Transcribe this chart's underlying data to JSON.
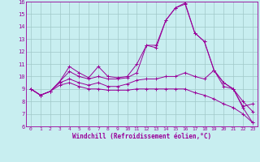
{
  "xlabel": "Windchill (Refroidissement éolien,°C)",
  "xlim": [
    -0.5,
    23.5
  ],
  "ylim": [
    6,
    16
  ],
  "xticks": [
    0,
    1,
    2,
    3,
    4,
    5,
    6,
    7,
    8,
    9,
    10,
    11,
    12,
    13,
    14,
    15,
    16,
    17,
    18,
    19,
    20,
    21,
    22,
    23
  ],
  "yticks": [
    6,
    7,
    8,
    9,
    10,
    11,
    12,
    13,
    14,
    15,
    16
  ],
  "background_color": "#c8eef0",
  "line_color": "#990099",
  "grid_color": "#a0c8c8",
  "series": [
    [
      9.0,
      8.5,
      8.8,
      9.6,
      10.8,
      10.3,
      9.9,
      10.8,
      10.0,
      9.9,
      10.0,
      11.0,
      12.5,
      12.3,
      14.5,
      15.5,
      15.9,
      13.5,
      12.8,
      10.5,
      9.5,
      9.0,
      7.6,
      7.8
    ],
    [
      9.0,
      8.5,
      8.8,
      9.6,
      10.4,
      10.0,
      9.8,
      10.0,
      9.8,
      9.8,
      9.9,
      10.3,
      12.5,
      12.5,
      14.5,
      15.5,
      15.8,
      13.5,
      12.8,
      10.5,
      9.5,
      9.0,
      7.5,
      6.3
    ],
    [
      9.0,
      8.5,
      8.8,
      9.5,
      9.8,
      9.5,
      9.3,
      9.5,
      9.2,
      9.2,
      9.4,
      9.7,
      9.8,
      9.8,
      10.0,
      10.0,
      10.3,
      10.0,
      9.8,
      10.5,
      9.2,
      9.0,
      8.0,
      7.2
    ],
    [
      9.0,
      8.5,
      8.8,
      9.3,
      9.5,
      9.2,
      9.0,
      9.0,
      8.9,
      8.9,
      8.9,
      9.0,
      9.0,
      9.0,
      9.0,
      9.0,
      9.0,
      8.7,
      8.5,
      8.2,
      7.8,
      7.5,
      7.0,
      6.3
    ]
  ]
}
